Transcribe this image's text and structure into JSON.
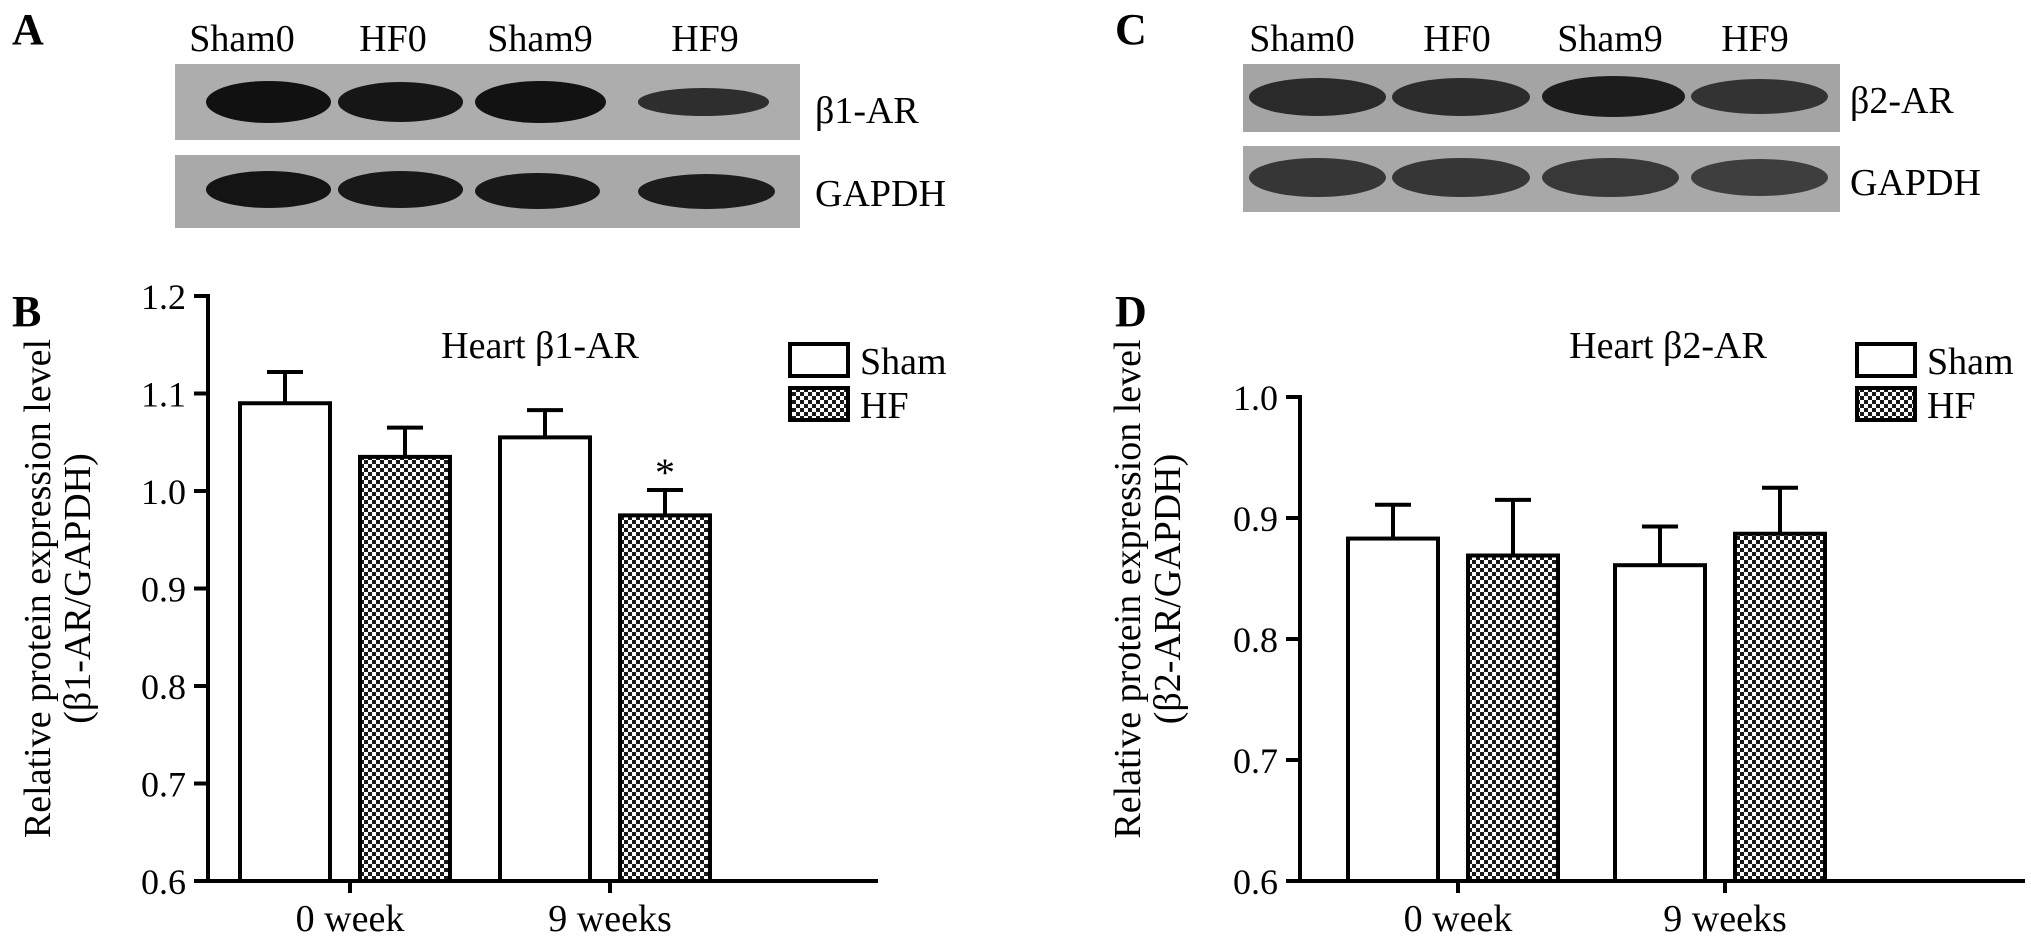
{
  "panels": {
    "A": {
      "letter": "A",
      "lanes": [
        "Sham0",
        "HF0",
        "Sham9",
        "HF9"
      ],
      "rows": [
        {
          "label": "β1-AR",
          "intensity": [
            1.0,
            0.9,
            0.95,
            0.6
          ]
        },
        {
          "label": "GAPDH",
          "intensity": [
            1.0,
            0.95,
            0.95,
            0.95
          ]
        }
      ]
    },
    "C": {
      "letter": "C",
      "lanes": [
        "Sham0",
        "HF0",
        "Sham9",
        "HF9"
      ],
      "rows": [
        {
          "label": "β2-AR",
          "intensity": [
            0.85,
            0.85,
            0.95,
            0.8
          ]
        },
        {
          "label": "GAPDH",
          "intensity": [
            0.85,
            0.85,
            0.85,
            0.8
          ]
        }
      ]
    },
    "B": {
      "letter": "B"
    },
    "D": {
      "letter": "D"
    }
  },
  "chart_data": [
    {
      "type": "bar",
      "title": "Heart β1-AR",
      "ylabel_line1": "Relative protein expression level",
      "ylabel_line2": "(β1-AR/GAPDH)",
      "categories": [
        "0 week",
        "9 weeks"
      ],
      "ylim": [
        0.6,
        1.2
      ],
      "yticks": [
        "0.6",
        "0.7",
        "0.8",
        "0.9",
        "1.0",
        "1.1",
        "1.2"
      ],
      "legend_position": "top-right",
      "series": [
        {
          "name": "Sham",
          "fill": "open",
          "values": [
            1.09,
            1.055
          ],
          "errors": [
            0.032,
            0.028
          ]
        },
        {
          "name": "HF",
          "fill": "hatched",
          "values": [
            1.035,
            0.975
          ],
          "errors": [
            0.03,
            0.026
          ]
        }
      ],
      "annotations": [
        {
          "text": "*",
          "series": "HF",
          "category": "9 weeks"
        }
      ]
    },
    {
      "type": "bar",
      "title": "Heart β2-AR",
      "ylabel_line1": "Relative protein expression level",
      "ylabel_line2": "(β2-AR/GAPDH)",
      "categories": [
        "0 week",
        "9 weeks"
      ],
      "ylim": [
        0.6,
        1.0
      ],
      "yticks": [
        "0.6",
        "0.7",
        "0.8",
        "0.9",
        "1.0"
      ],
      "legend_position": "top-right",
      "series": [
        {
          "name": "Sham",
          "fill": "open",
          "values": [
            0.883,
            0.861
          ],
          "errors": [
            0.028,
            0.032
          ]
        },
        {
          "name": "HF",
          "fill": "hatched",
          "values": [
            0.869,
            0.887
          ],
          "errors": [
            0.046,
            0.038
          ]
        }
      ],
      "annotations": []
    }
  ]
}
